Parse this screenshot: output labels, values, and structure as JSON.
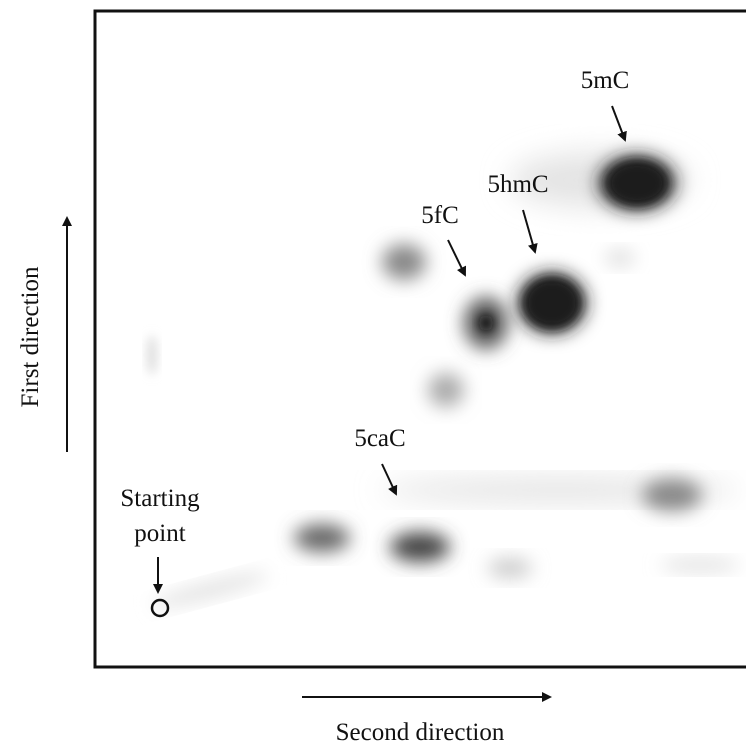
{
  "spots": [
    {
      "label": "5mC"
    },
    {
      "label": "5hmC"
    },
    {
      "label": "5fC"
    },
    {
      "label": "5caC"
    }
  ],
  "start": {
    "label_line1": "Starting",
    "label_line2": "point"
  },
  "axes": {
    "first": "First direction",
    "second": "Second direction"
  }
}
